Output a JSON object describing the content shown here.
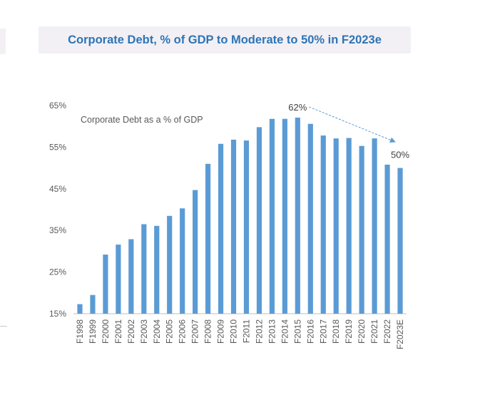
{
  "chart_data": {
    "type": "bar",
    "title": "Corporate Debt, % of GDP to Moderate to 50% in F2023e",
    "series_label": "Corporate Debt as a % of GDP",
    "categories": [
      "F1998",
      "F1999",
      "F2000",
      "F2001",
      "F2002",
      "F2003",
      "F2004",
      "F2005",
      "F2006",
      "F2007",
      "F2008",
      "F2009",
      "F2010",
      "F2011",
      "F2012",
      "F2013",
      "F2014",
      "F2015",
      "F2016",
      "F2017",
      "F2018",
      "F2019",
      "F2020",
      "F2021",
      "F2022",
      "F2023E"
    ],
    "values": [
      17.3,
      19.5,
      29.2,
      31.6,
      32.9,
      36.5,
      36.1,
      38.5,
      40.3,
      44.7,
      51.0,
      55.8,
      56.8,
      56.6,
      59.8,
      61.8,
      61.8,
      62.1,
      60.6,
      57.8,
      57.1,
      57.2,
      55.3,
      57.1,
      50.8,
      50.0
    ],
    "yticks": [
      "15%",
      "25%",
      "35%",
      "45%",
      "55%",
      "65%"
    ],
    "ylim": [
      15,
      65
    ],
    "bar_color": "#5b9bd5",
    "annotations": [
      {
        "text": "62%",
        "category": "F2015"
      },
      {
        "text": "50%",
        "category": "F2023E"
      }
    ],
    "grid": false
  }
}
